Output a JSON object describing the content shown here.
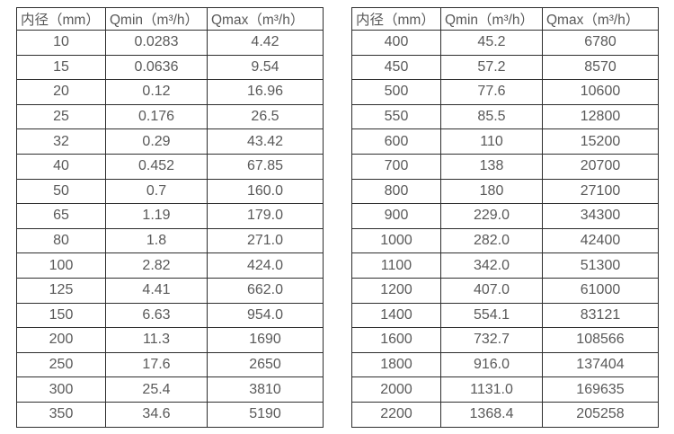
{
  "colors": {
    "border": "#2e2e2e",
    "text": "#595959",
    "background": "#ffffff"
  },
  "chart_data": [
    {
      "type": "table",
      "name": "flow-range-table-small-diameters",
      "columns": [
        "内径（mm）",
        "Qmin（m³/h）",
        "Qmax（m³/h）"
      ],
      "rows": [
        [
          "10",
          "0.0283",
          "4.42"
        ],
        [
          "15",
          "0.0636",
          "9.54"
        ],
        [
          "20",
          "0.12",
          "16.96"
        ],
        [
          "25",
          "0.176",
          "26.5"
        ],
        [
          "32",
          "0.29",
          "43.42"
        ],
        [
          "40",
          "0.452",
          "67.85"
        ],
        [
          "50",
          "0.7",
          "160.0"
        ],
        [
          "65",
          "1.19",
          "179.0"
        ],
        [
          "80",
          "1.8",
          "271.0"
        ],
        [
          "100",
          "2.82",
          "424.0"
        ],
        [
          "125",
          "4.41",
          "662.0"
        ],
        [
          "150",
          "6.63",
          "954.0"
        ],
        [
          "200",
          "11.3",
          "1690"
        ],
        [
          "250",
          "17.6",
          "2650"
        ],
        [
          "300",
          "25.4",
          "3810"
        ],
        [
          "350",
          "34.6",
          "5190"
        ]
      ]
    },
    {
      "type": "table",
      "name": "flow-range-table-large-diameters",
      "columns": [
        "内径（mm）",
        "Qmin（m³/h）",
        "Qmax（m³/h）"
      ],
      "rows": [
        [
          "400",
          "45.2",
          "6780"
        ],
        [
          "450",
          "57.2",
          "8570"
        ],
        [
          "500",
          "77.6",
          "10600"
        ],
        [
          "550",
          "85.5",
          "12800"
        ],
        [
          "600",
          "110",
          "15200"
        ],
        [
          "700",
          "138",
          "20700"
        ],
        [
          "800",
          "180",
          "27100"
        ],
        [
          "900",
          "229.0",
          "34300"
        ],
        [
          "1000",
          "282.0",
          "42400"
        ],
        [
          "1100",
          "342.0",
          "51300"
        ],
        [
          "1200",
          "407.0",
          "61000"
        ],
        [
          "1400",
          "554.1",
          "83121"
        ],
        [
          "1600",
          "732.7",
          "108566"
        ],
        [
          "1800",
          "916.0",
          "137404"
        ],
        [
          "2000",
          "1131.0",
          "169635"
        ],
        [
          "2200",
          "1368.4",
          "205258"
        ]
      ]
    }
  ]
}
